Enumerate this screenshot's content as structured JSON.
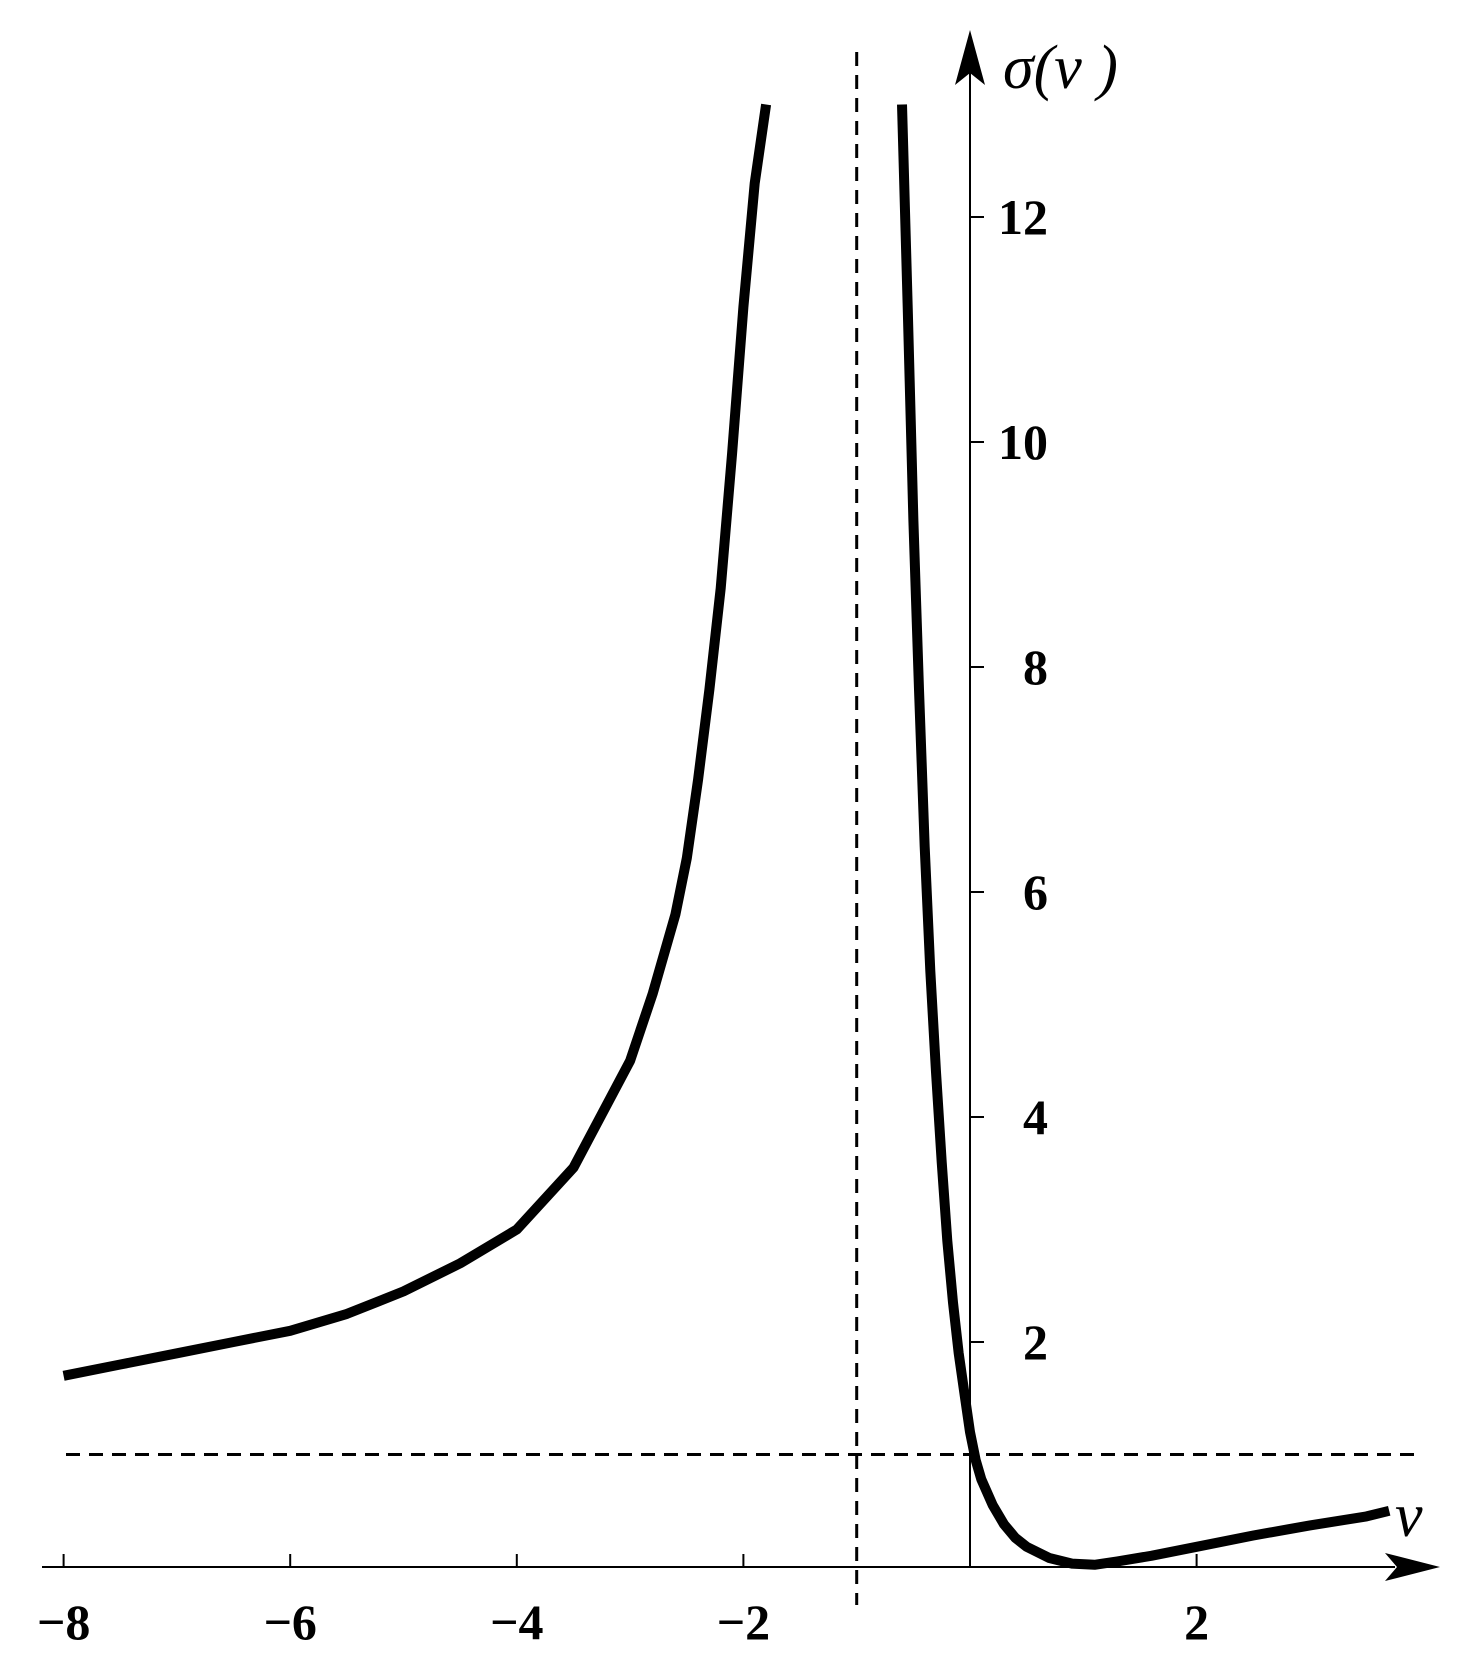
{
  "chart_data": {
    "type": "line",
    "title": "",
    "xlabel": "ν",
    "ylabel": "σ(ν )",
    "xlim": [
      -8,
      3.7
    ],
    "ylim": [
      0,
      13
    ],
    "x_ticks": [
      {
        "value": -8,
        "label": "−8"
      },
      {
        "value": -6,
        "label": "−6"
      },
      {
        "value": -4,
        "label": "−4"
      },
      {
        "value": -2,
        "label": "−2"
      },
      {
        "value": 2,
        "label": "2"
      }
    ],
    "y_ticks": [
      {
        "value": 2,
        "label": "2"
      },
      {
        "value": 4,
        "label": "4"
      },
      {
        "value": 6,
        "label": "6"
      },
      {
        "value": 8,
        "label": "8"
      },
      {
        "value": 10,
        "label": "10"
      },
      {
        "value": 12,
        "label": "12"
      }
    ],
    "reference_lines": [
      {
        "orientation": "vertical",
        "value": -1,
        "style": "dashed"
      },
      {
        "orientation": "horizontal",
        "value": 1,
        "style": "dashed"
      }
    ],
    "grid": false,
    "series": [
      {
        "segment": "left-branch",
        "x": [
          -8,
          -7.5,
          -7,
          -6.5,
          -6,
          -5.5,
          -5,
          -4.5,
          -4,
          -3.5,
          -3,
          -2.8,
          -2.6,
          -2.5,
          -2.4,
          -2.3,
          -2.2,
          -2.1,
          -2.0,
          -1.9,
          -1.8
        ],
        "y": [
          1.7,
          1.8,
          1.9,
          2.0,
          2.1,
          2.25,
          2.45,
          2.7,
          3.0,
          3.55,
          4.5,
          5.1,
          5.8,
          6.3,
          7.0,
          7.8,
          8.7,
          9.9,
          11.2,
          12.3,
          13.0
        ]
      },
      {
        "segment": "right-branch",
        "x": [
          -0.6,
          -0.55,
          -0.5,
          -0.45,
          -0.4,
          -0.35,
          -0.3,
          -0.25,
          -0.2,
          -0.15,
          -0.1,
          -0.05,
          0,
          0.05,
          0.1,
          0.2,
          0.3,
          0.4,
          0.5,
          0.7,
          0.9,
          1.1,
          1.3,
          1.6,
          2.0,
          2.5,
          3.0,
          3.5,
          3.7
        ],
        "y": [
          13.0,
          11.2,
          9.3,
          7.8,
          6.4,
          5.3,
          4.4,
          3.6,
          2.9,
          2.35,
          1.9,
          1.55,
          1.2,
          0.95,
          0.78,
          0.55,
          0.38,
          0.26,
          0.18,
          0.08,
          0.03,
          0.02,
          0.05,
          0.1,
          0.18,
          0.28,
          0.37,
          0.45,
          0.5
        ]
      }
    ]
  }
}
